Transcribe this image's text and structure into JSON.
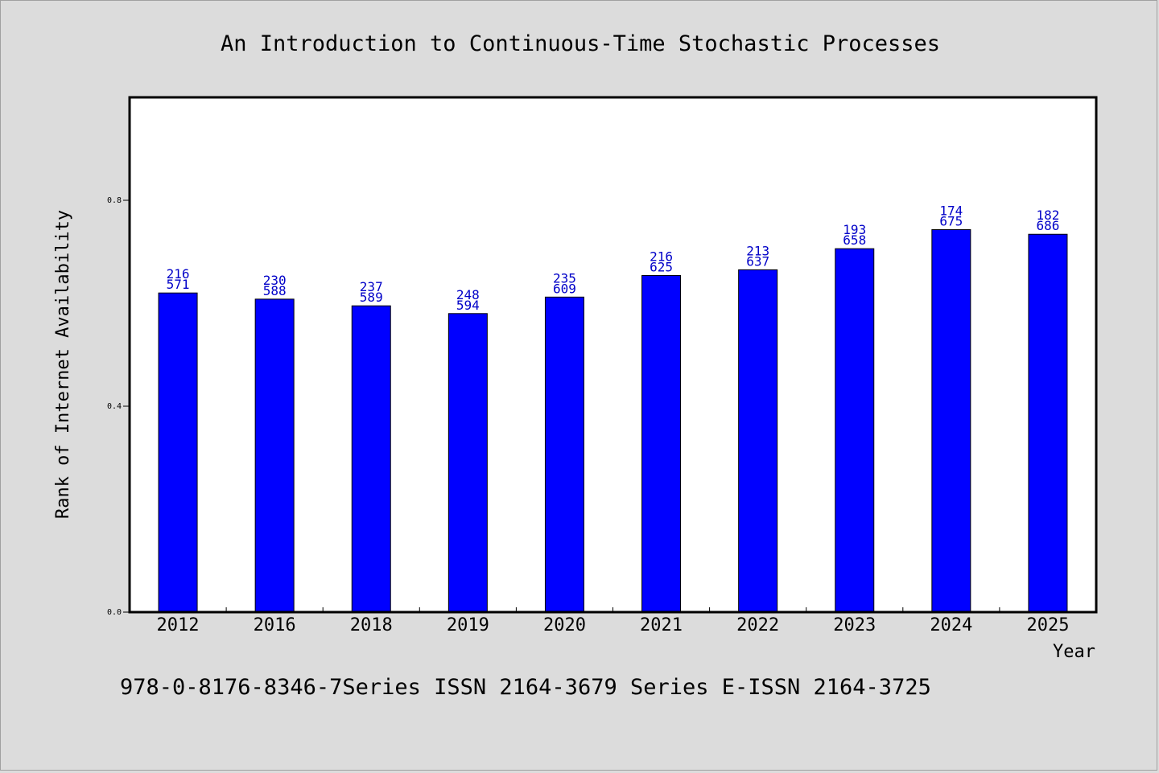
{
  "chart_data": {
    "type": "bar",
    "title": "An Introduction to Continuous-Time Stochastic Processes",
    "xlabel": "Year",
    "ylabel": "Rank of Internet Availability",
    "categories": [
      "2012",
      "2016",
      "2018",
      "2019",
      "2020",
      "2021",
      "2022",
      "2023",
      "2024",
      "2025"
    ],
    "values": [
      0.62,
      0.608,
      0.595,
      0.58,
      0.612,
      0.654,
      0.665,
      0.706,
      0.743,
      0.734
    ],
    "data_labels": [
      [
        "216",
        "571"
      ],
      [
        "230",
        "588"
      ],
      [
        "237",
        "589"
      ],
      [
        "248",
        "594"
      ],
      [
        "235",
        "609"
      ],
      [
        "216",
        "625"
      ],
      [
        "213",
        "637"
      ],
      [
        "193",
        "658"
      ],
      [
        "174",
        "675"
      ],
      [
        "182",
        "686"
      ]
    ],
    "ylim": [
      0,
      1.0
    ],
    "yticks": [
      0.0,
      0.4,
      0.8
    ],
    "ytick_labels": [
      "0.0",
      "0.4",
      "0.8"
    ],
    "bar_color": "#0000ff",
    "label_color": "#0000c8",
    "grid": false,
    "legend": "none"
  },
  "footer": "978-0-8176-8346-7Series ISSN 2164-3679 Series E-ISSN 2164-3725"
}
